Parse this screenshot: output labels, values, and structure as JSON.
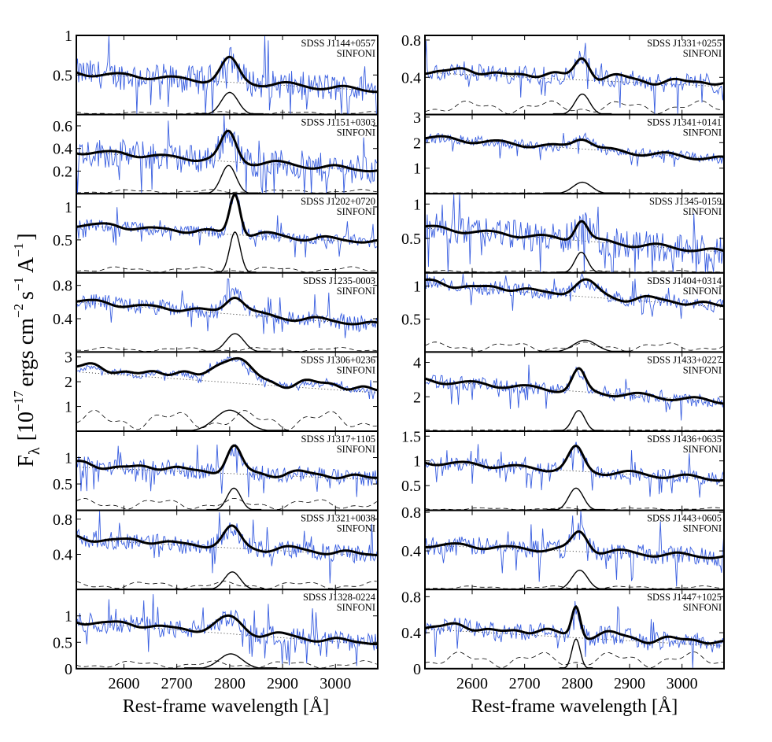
{
  "figure": {
    "ylabel_main": "F",
    "ylabel_sub": "λ",
    "ylabel_rest": "[10",
    "ylabel_exp1": "−17",
    "ylabel_unit1": "ergs cm",
    "ylabel_exp2": "−2",
    "ylabel_unit2": "s",
    "ylabel_exp3": "−1",
    "ylabel_unit3": "A",
    "ylabel_exp4": "−1",
    "ylabel_close": "]"
  },
  "chart_data": {
    "type": "line",
    "xlabel": "Rest-frame wavelength [Å]",
    "xlim": [
      2510,
      3080
    ],
    "xticks": [
      2600,
      2700,
      2800,
      2900,
      3000
    ],
    "instrument": "SINFONI",
    "series_legend": {
      "observed": "thin blue line",
      "model_fit": "thick black line",
      "continuum": "dotted line",
      "mgii_line": "solid black line",
      "feii_template": "dashed line"
    },
    "panels": [
      {
        "object": "SDSS J1144+0557",
        "col": 0,
        "ylim": [
          0,
          1.0
        ],
        "yticks": [
          0.5,
          1
        ],
        "ytick_labels": [
          "0.5",
          "1"
        ],
        "cont_start": 0.52,
        "cont_end": 0.3,
        "peak_center": 2800,
        "peak_height": 0.28,
        "peak_width": 16,
        "noise": 0.18,
        "feii_level": 0.02
      },
      {
        "object": "SDSS J1151+0303",
        "col": 0,
        "ylim": [
          0,
          0.7
        ],
        "yticks": [
          0.2,
          0.4,
          0.6
        ],
        "ytick_labels": [
          "0.2",
          "0.4",
          "0.6"
        ],
        "cont_start": 0.37,
        "cont_end": 0.2,
        "peak_center": 2798,
        "peak_height": 0.25,
        "peak_width": 14,
        "noise": 0.13,
        "feii_level": 0.02
      },
      {
        "object": "SDSS J1202+0720",
        "col": 0,
        "ylim": [
          0,
          1.2
        ],
        "yticks": [
          0.5,
          1
        ],
        "ytick_labels": [
          "0.5",
          "1"
        ],
        "cont_start": 0.72,
        "cont_end": 0.45,
        "peak_center": 2810,
        "peak_height": 0.62,
        "peak_width": 10,
        "noise": 0.09,
        "feii_level": 0.05
      },
      {
        "object": "SDSS J1235-0003",
        "col": 0,
        "ylim": [
          0,
          0.95
        ],
        "yticks": [
          0.4,
          0.8
        ],
        "ytick_labels": [
          "0.4",
          "0.8"
        ],
        "cont_start": 0.6,
        "cont_end": 0.32,
        "peak_center": 2810,
        "peak_height": 0.22,
        "peak_width": 17,
        "noise": 0.1,
        "feii_level": 0.03
      },
      {
        "object": "SDSS J1306+0236",
        "col": 0,
        "ylim": [
          0,
          3.2
        ],
        "yticks": [
          1,
          2,
          3
        ],
        "ytick_labels": [
          "1",
          "2",
          "3"
        ],
        "cont_start": 2.4,
        "cont_end": 1.55,
        "peak_center": 2800,
        "peak_height": 0.85,
        "peak_width": 28,
        "noise": 0.12,
        "feii_level": 0.45
      },
      {
        "object": "SDSS J1317+1105",
        "col": 0,
        "ylim": [
          0,
          1.5
        ],
        "yticks": [
          0.5,
          1
        ],
        "ytick_labels": [
          "0.5",
          "1"
        ],
        "cont_start": 0.82,
        "cont_end": 0.58,
        "peak_center": 2808,
        "peak_height": 0.42,
        "peak_width": 13,
        "noise": 0.15,
        "feii_level": 0.12
      },
      {
        "object": "SDSS J1321+0038",
        "col": 0,
        "ylim": [
          0,
          0.9
        ],
        "yticks": [
          0.4,
          0.8
        ],
        "ytick_labels": [
          "0.4",
          "0.8"
        ],
        "cont_start": 0.57,
        "cont_end": 0.38,
        "peak_center": 2805,
        "peak_height": 0.2,
        "peak_width": 15,
        "noise": 0.1,
        "feii_level": 0.05
      },
      {
        "object": "SDSS J1328-0224",
        "col": 0,
        "ylim": [
          0,
          1.5
        ],
        "yticks": [
          0,
          0.5,
          1
        ],
        "ytick_labels": [
          "0",
          "0.5",
          "1"
        ],
        "cont_start": 0.88,
        "cont_end": 0.45,
        "peak_center": 2802,
        "peak_height": 0.28,
        "peak_width": 22,
        "noise": 0.18,
        "feii_level": 0.08
      },
      {
        "object": "SDSS J1331+0255",
        "col": 1,
        "ylim": [
          0,
          0.85
        ],
        "yticks": [
          0.4,
          0.8
        ],
        "ytick_labels": [
          "0.4",
          "0.8"
        ],
        "cont_start": 0.45,
        "cont_end": 0.3,
        "peak_center": 2810,
        "peak_height": 0.22,
        "peak_width": 14,
        "noise": 0.1,
        "feii_level": 0.08
      },
      {
        "object": "SDSS J1341+0141",
        "col": 1,
        "ylim": [
          0,
          3.1
        ],
        "yticks": [
          1,
          2,
          3
        ],
        "ytick_labels": [
          "1",
          "2",
          "3"
        ],
        "cont_start": 2.2,
        "cont_end": 1.35,
        "peak_center": 2810,
        "peak_height": 0.45,
        "peak_width": 18,
        "noise": 0.2,
        "feii_level": 0.02
      },
      {
        "object": "SDSS J1345-0159",
        "col": 1,
        "ylim": [
          0,
          1.15
        ],
        "yticks": [
          0.5,
          1
        ],
        "ytick_labels": [
          "0.5",
          "1"
        ],
        "cont_start": 0.65,
        "cont_end": 0.3,
        "peak_center": 2808,
        "peak_height": 0.3,
        "peak_width": 12,
        "noise": 0.22,
        "feii_level": 0.02
      },
      {
        "object": "SDSS J1404+0314",
        "col": 1,
        "ylim": [
          0,
          1.2
        ],
        "yticks": [
          0.5,
          1
        ],
        "ytick_labels": [
          "0.5",
          "1"
        ],
        "cont_start": 1.02,
        "cont_end": 0.68,
        "peak_center": 2815,
        "peak_height": 0.18,
        "peak_width": 22,
        "noise": 0.1,
        "feii_level": 0.08
      },
      {
        "object": "SDSS J1433+0227",
        "col": 1,
        "ylim": [
          0,
          4.6
        ],
        "yticks": [
          2,
          4
        ],
        "ytick_labels": [
          "2",
          "4"
        ],
        "cont_start": 2.95,
        "cont_end": 1.7,
        "peak_center": 2803,
        "peak_height": 1.2,
        "peak_width": 12,
        "noise": 0.4,
        "feii_level": 0.05
      },
      {
        "object": "SDSS J1436+0635",
        "col": 1,
        "ylim": [
          0,
          1.6
        ],
        "yticks": [
          0.5,
          1,
          1.5
        ],
        "ytick_labels": [
          "0.5",
          "1",
          "1.5"
        ],
        "cont_start": 0.97,
        "cont_end": 0.62,
        "peak_center": 2798,
        "peak_height": 0.45,
        "peak_width": 14,
        "noise": 0.14,
        "feii_level": 0.03
      },
      {
        "object": "SDSS J1443+0605",
        "col": 1,
        "ylim": [
          0,
          0.82
        ],
        "yticks": [
          0.4,
          0.8
        ],
        "ytick_labels": [
          "0.4",
          "0.8"
        ],
        "cont_start": 0.46,
        "cont_end": 0.33,
        "peak_center": 2805,
        "peak_height": 0.2,
        "peak_width": 15,
        "noise": 0.1,
        "feii_level": 0.02
      },
      {
        "object": "SDSS J1447+1025",
        "col": 1,
        "ylim": [
          0,
          0.88
        ],
        "yticks": [
          0,
          0.4,
          0.8
        ],
        "ytick_labels": [
          "0",
          "0.4",
          "0.8"
        ],
        "cont_start": 0.44,
        "cont_end": 0.25,
        "peak_center": 2798,
        "peak_height": 0.33,
        "peak_width": 8,
        "noise": 0.1,
        "feii_level": 0.1
      }
    ]
  }
}
